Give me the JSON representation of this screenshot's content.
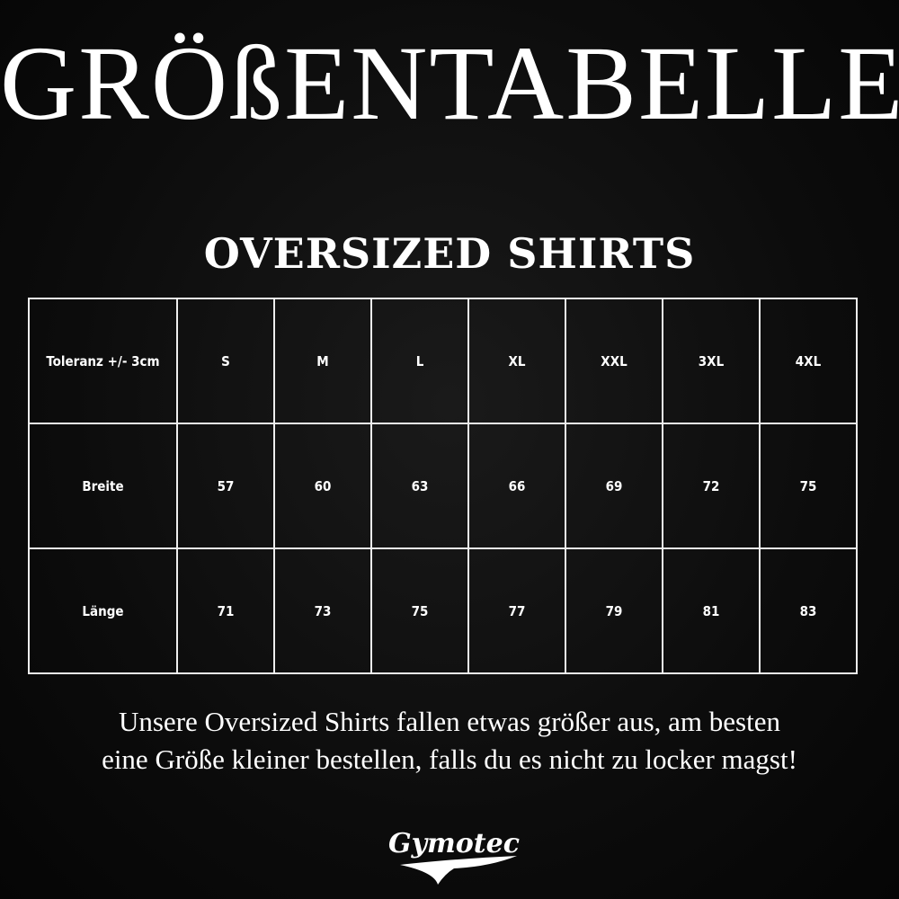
{
  "title": "GRÖßENTABELLE",
  "subtitle": "OVERSIZED SHIRTS",
  "table": {
    "header": [
      "Toleranz +/- 3cm",
      "S",
      "M",
      "L",
      "XL",
      "XXL",
      "3XL",
      "4XL"
    ],
    "rows": [
      [
        "Breite",
        "57",
        "60",
        "63",
        "66",
        "69",
        "72",
        "75"
      ],
      [
        "Länge",
        "71",
        "73",
        "75",
        "77",
        "79",
        "81",
        "83"
      ]
    ]
  },
  "note": [
    "Unsere Oversized Shirts fallen etwas größer aus, am besten",
    "eine Größe kleiner bestellen, falls du es nicht zu locker magst!"
  ],
  "logo": "Gymotec"
}
